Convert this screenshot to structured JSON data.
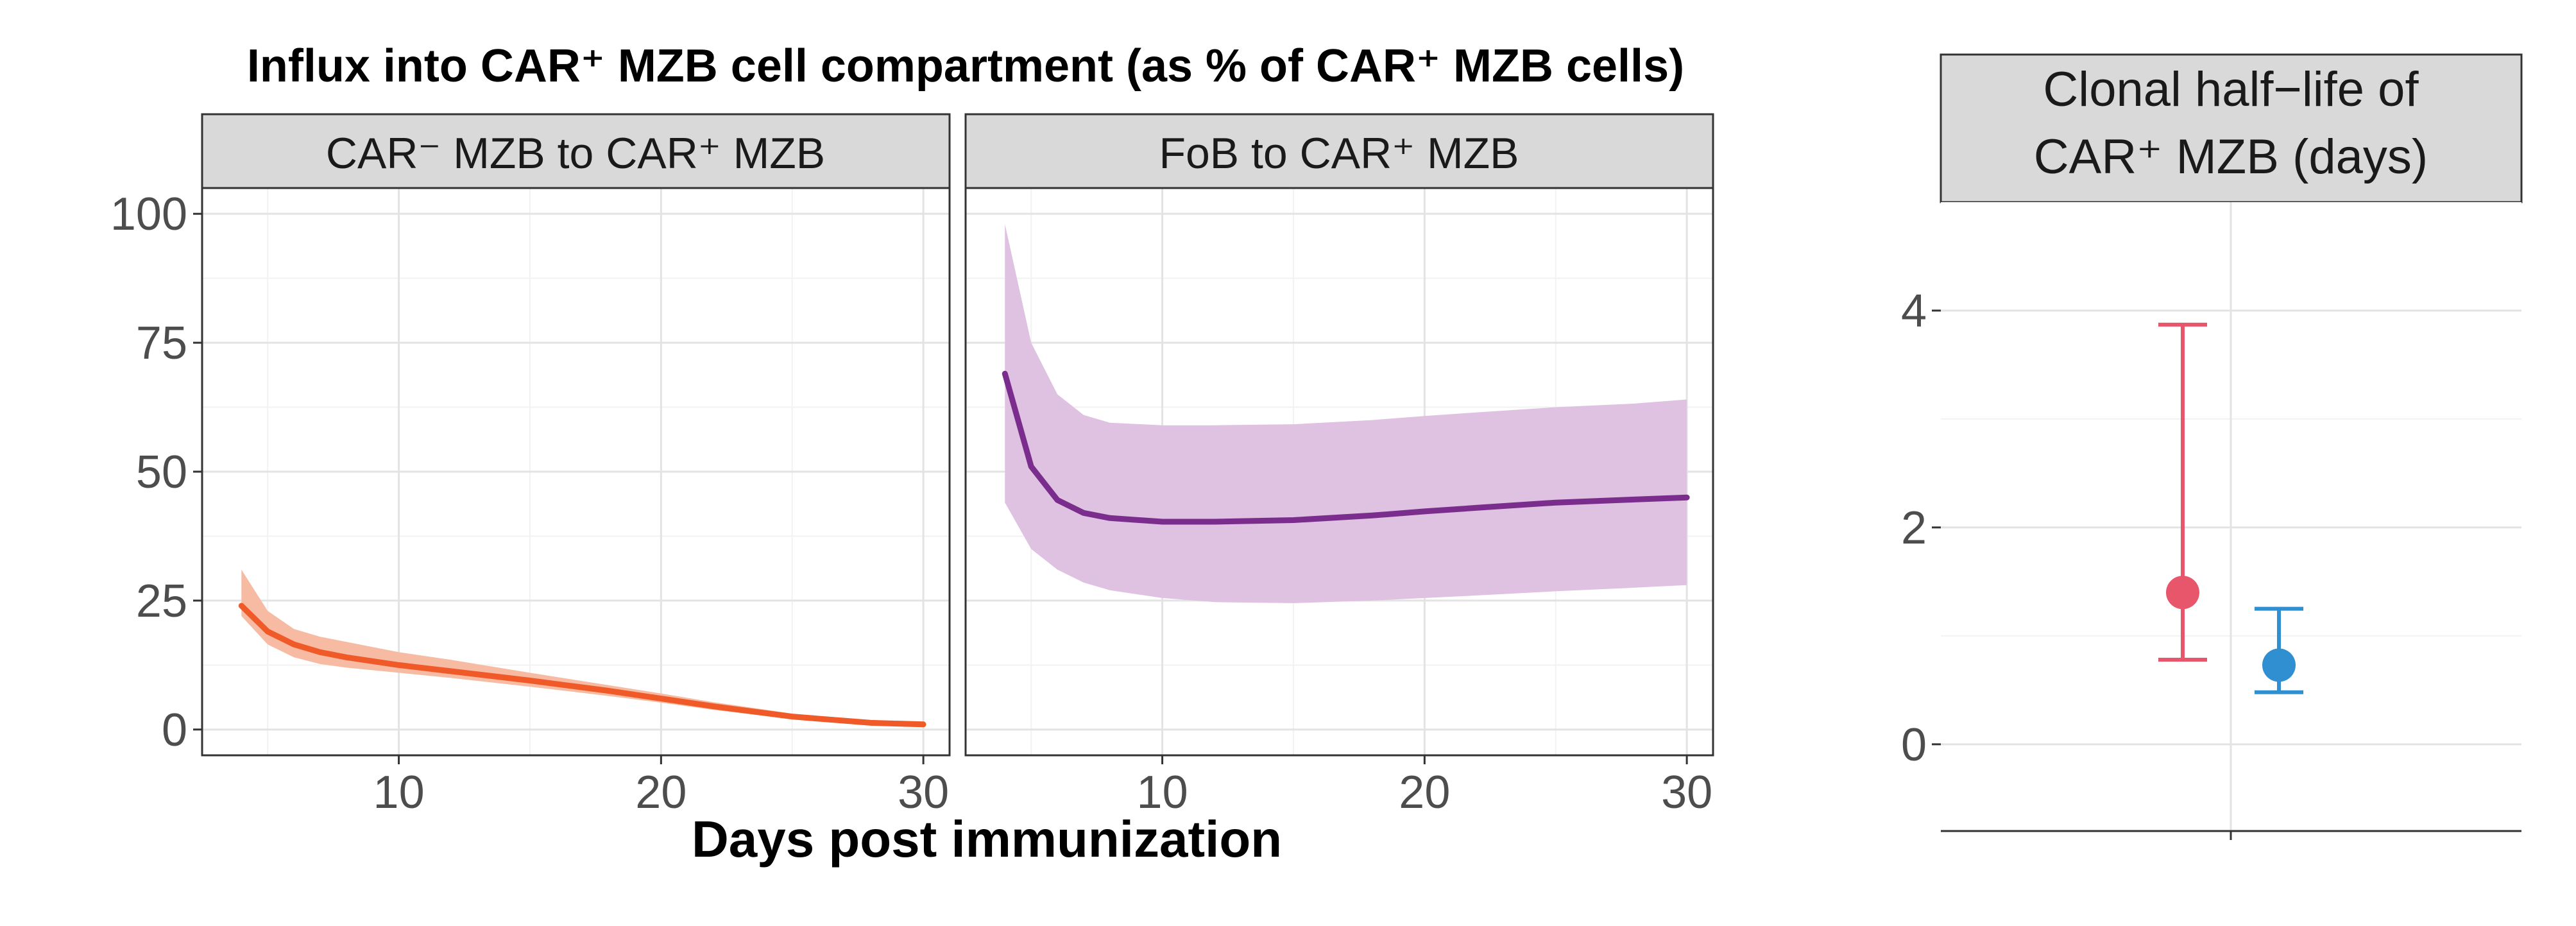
{
  "chart_data": [
    {
      "type": "line",
      "title": "Influx into CAR⁺ MZB cell compartment (as % of CAR⁺ MZB cells)",
      "xlabel": "Days post immunization",
      "ylabel": "",
      "xlim": [
        2.5,
        31
      ],
      "ylim": [
        -5,
        105
      ],
      "xticks": [
        10,
        20,
        30
      ],
      "yticks": [
        0,
        25,
        50,
        75,
        100
      ],
      "grid": true,
      "panels": [
        {
          "strip_label": "CAR⁻ MZB to CAR⁺ MZB",
          "color": "#f05a28",
          "band_color": "#f6bba2",
          "x": [
            4,
            5,
            6,
            7,
            8,
            10,
            12,
            15,
            18,
            20,
            22,
            25,
            28,
            30
          ],
          "y": [
            24,
            19,
            16.5,
            15,
            14,
            12.5,
            11.3,
            9.5,
            7.5,
            6,
            4.5,
            2.5,
            1.3,
            1
          ],
          "lower": [
            22,
            16.5,
            14,
            12.7,
            12,
            11,
            10,
            8.3,
            6.5,
            5.2,
            3.8,
            2,
            0.9,
            0.6
          ],
          "upper": [
            31,
            23,
            19.5,
            18,
            17,
            15,
            13.5,
            11,
            8.6,
            7,
            5.3,
            3.1,
            1.7,
            1.4
          ]
        },
        {
          "strip_label": "FoB to CAR⁺ MZB",
          "color": "#7b2d8e",
          "band_color": "#dfc1e1",
          "x": [
            4,
            5,
            6,
            7,
            8,
            10,
            12,
            15,
            18,
            20,
            22,
            25,
            28,
            30
          ],
          "y": [
            69,
            51,
            44.5,
            42,
            41,
            40.3,
            40.3,
            40.6,
            41.5,
            42.3,
            43,
            44,
            44.6,
            45
          ],
          "lower": [
            44,
            35,
            31,
            28.5,
            27,
            25.5,
            24.7,
            24.5,
            25,
            25.5,
            26,
            26.8,
            27.5,
            28
          ],
          "upper": [
            98,
            75,
            65,
            61,
            59.5,
            59,
            59,
            59.2,
            60,
            60.8,
            61.5,
            62.5,
            63.2,
            64
          ]
        }
      ]
    },
    {
      "type": "scatter",
      "title": "Clonal half−life of CAR⁺ MZB (days)",
      "xlabel": "",
      "ylabel": "",
      "ylim": [
        -0.8,
        5
      ],
      "yticks": [
        0,
        2,
        4
      ],
      "grid": true,
      "points": [
        {
          "value": 1.4,
          "lower": 0.78,
          "upper": 3.87,
          "color": "#e8566c"
        },
        {
          "value": 0.73,
          "lower": 0.48,
          "upper": 1.25,
          "color": "#2f8fd1"
        }
      ]
    }
  ]
}
